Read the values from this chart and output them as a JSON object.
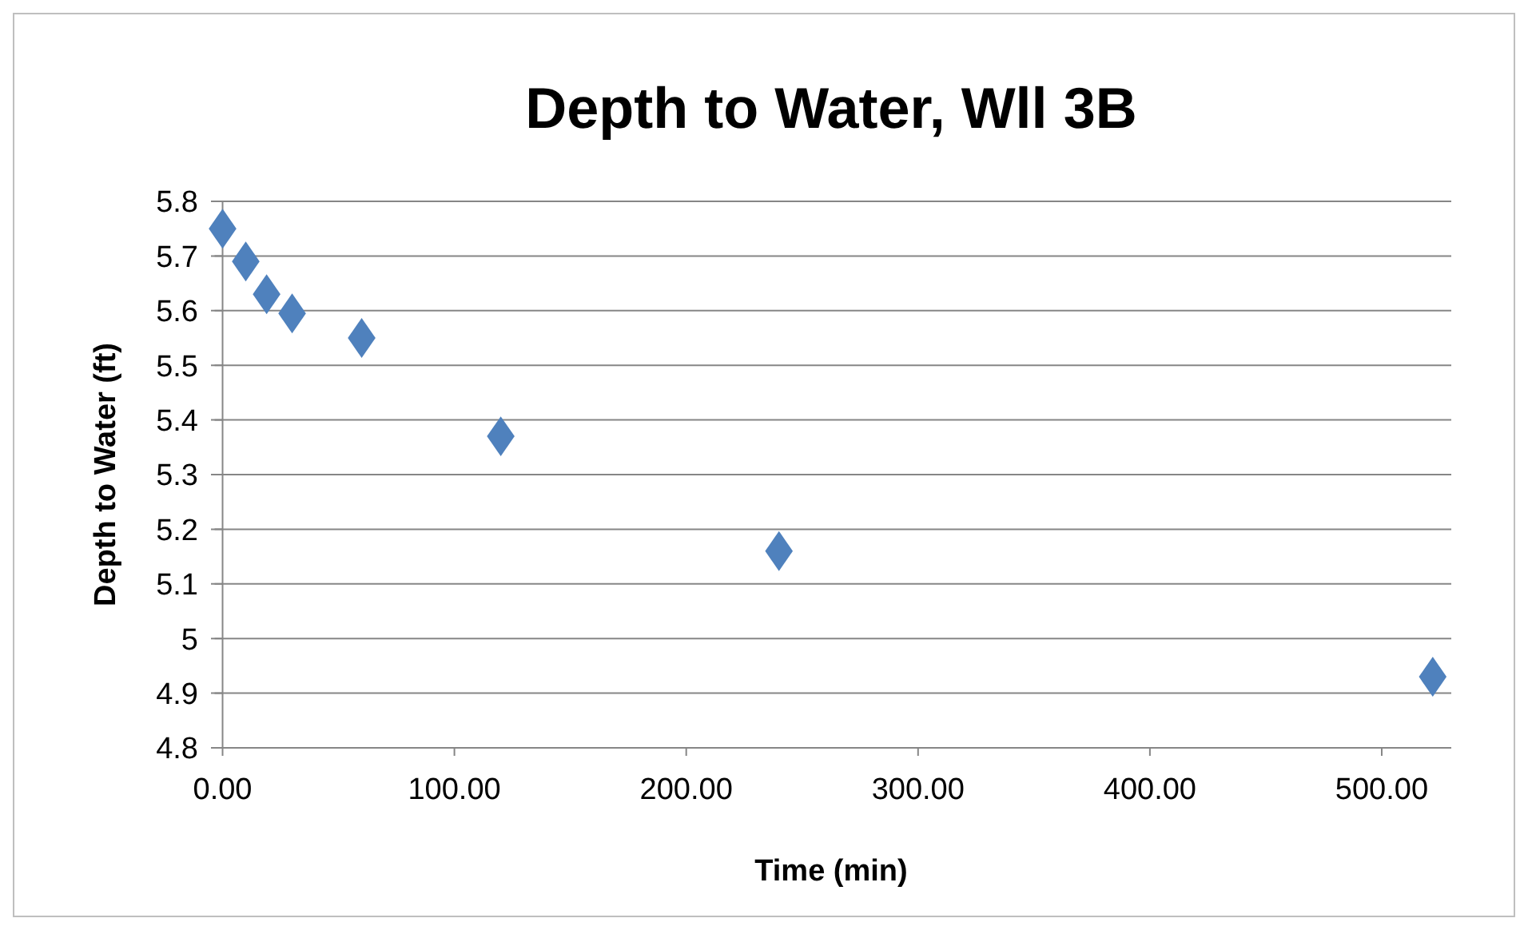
{
  "chart_data": {
    "type": "scatter",
    "title": "Depth to Water, Wll 3B",
    "xlabel": "Time (min)",
    "ylabel": "Depth to Water (ft)",
    "x": [
      0,
      10,
      19,
      30,
      60,
      120,
      240,
      522
    ],
    "values": [
      5.75,
      5.69,
      5.63,
      5.595,
      5.55,
      5.37,
      5.16,
      4.93
    ],
    "color": "#4f81bd",
    "marker": "diamond",
    "xlim": [
      -5,
      530
    ],
    "xticks": [
      {
        "value": 0,
        "label": "0.00"
      },
      {
        "value": 100,
        "label": "100.00"
      },
      {
        "value": 200,
        "label": "200.00"
      },
      {
        "value": 300,
        "label": "300.00"
      },
      {
        "value": 400,
        "label": "400.00"
      },
      {
        "value": 500,
        "label": "500.00"
      }
    ],
    "ylim": [
      4.8,
      5.8
    ],
    "yticks": [
      4.8,
      4.9,
      5,
      5.1,
      5.2,
      5.3,
      5.4,
      5.5,
      5.6,
      5.7,
      5.8
    ],
    "grid": "y"
  }
}
